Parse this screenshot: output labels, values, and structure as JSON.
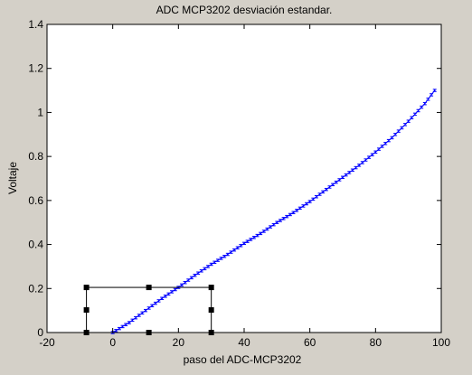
{
  "chart_data": {
    "type": "line",
    "title": "ADC MCP3202 desviación estandar.",
    "xlabel": "paso del ADC-MCP3202",
    "ylabel": "Voltaje",
    "xlim": [
      -20,
      100
    ],
    "ylim": [
      0,
      1.4
    ],
    "x_ticks": [
      -20,
      0,
      20,
      40,
      60,
      80,
      100
    ],
    "y_ticks": [
      0,
      0.2,
      0.4,
      0.6,
      0.8,
      1,
      1.2,
      1.4
    ],
    "x_tick_labels": [
      "-20",
      "0",
      "20",
      "40",
      "60",
      "80",
      "100"
    ],
    "y_tick_labels": [
      "0",
      "0.2",
      "0.4",
      "0.6",
      "0.8",
      "1",
      "1.2",
      "1.4"
    ],
    "grid": false,
    "series": [
      {
        "color": "#0000ff",
        "errorbar": true,
        "error": 0.005,
        "x": [
          0,
          5,
          10,
          15,
          20,
          25,
          30,
          35,
          40,
          45,
          50,
          55,
          60,
          65,
          70,
          75,
          80,
          85,
          90,
          95,
          98
        ],
        "y": [
          0.0,
          0.045,
          0.1,
          0.155,
          0.205,
          0.26,
          0.31,
          0.355,
          0.405,
          0.45,
          0.5,
          0.545,
          0.595,
          0.65,
          0.705,
          0.76,
          0.82,
          0.885,
          0.96,
          1.04,
          1.1
        ]
      }
    ],
    "selection_box": {
      "x_range": [
        -8,
        30
      ],
      "y_range": [
        0,
        0.205
      ]
    }
  }
}
